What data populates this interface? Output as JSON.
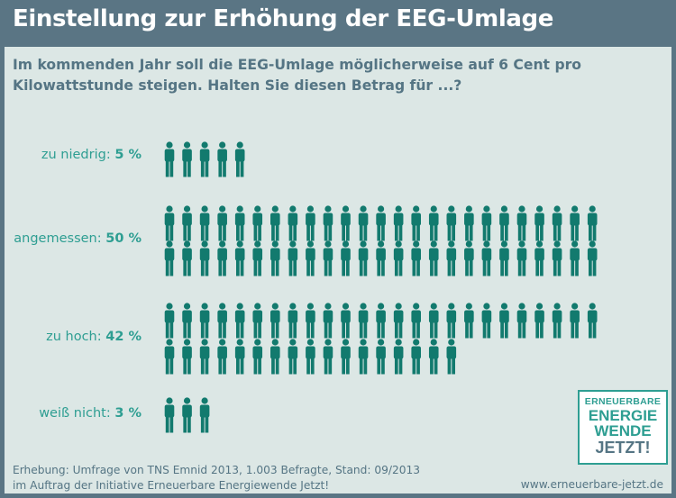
{
  "title": "Einstellung zur Erhöhung der EEG-Umlage",
  "question": "Im kommenden Jahr soll die EEG-Umlage möglicherweise auf 6 Cent pro Kilowattstunde steigen. Halten Sie diesen Betrag für ...?",
  "chart_data": {
    "type": "bar",
    "categories": [
      "zu niedrig",
      "angemessen",
      "zu hoch",
      "weiß nicht"
    ],
    "values": [
      5,
      50,
      42,
      3
    ],
    "value_labels": [
      "5 %",
      "50 %",
      "42 %",
      "3 %"
    ],
    "icons_shown": [
      5,
      50,
      42,
      3
    ],
    "unit": "%",
    "title": "Einstellung zur Erhöhung der EEG-Umlage",
    "icon_color": "#127a6e"
  },
  "labels": [
    {
      "name": "zu niedrig:",
      "value": "5 %"
    },
    {
      "name": "angemessen:",
      "value": "50 %"
    },
    {
      "name": "zu hoch:",
      "value": "42 %"
    },
    {
      "name": "weiß nicht:",
      "value": "3 %"
    }
  ],
  "footer": {
    "source_line1": "Erhebung: Umfrage von TNS Emnid 2013, 1.003 Befragte, Stand: 09/2013",
    "source_line2": "im Auftrag der Initiative Erneuerbare Energiewende Jetzt!",
    "url": "www.erneuerbare-jetzt.de"
  },
  "logo": {
    "line1": "ERNEUERBARE",
    "line2": "ENERGIE",
    "line3": "WENDE",
    "line4": "JETZT!"
  },
  "colors": {
    "header_bg": "#5a7584",
    "panel_bg": "#dce7e5",
    "accent": "#2e9e92",
    "icon": "#127a6e",
    "text": "#557584"
  }
}
